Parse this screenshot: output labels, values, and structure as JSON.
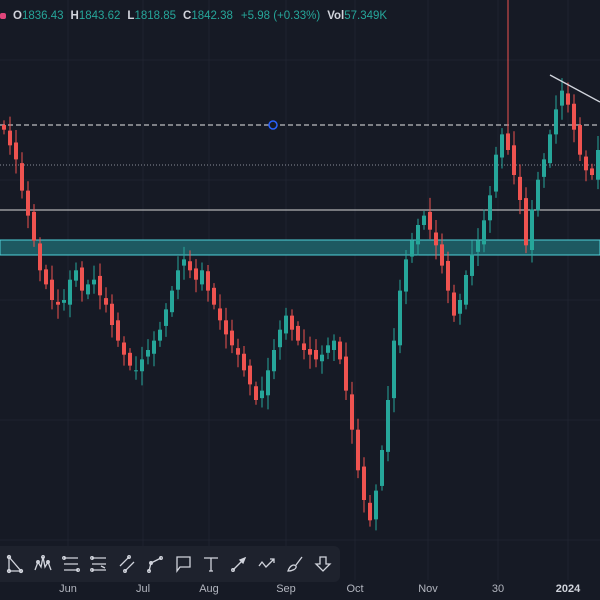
{
  "legend": {
    "open_label": "O",
    "open": "1836.43",
    "high_label": "H",
    "high": "1843.62",
    "low_label": "L",
    "low": "1818.85",
    "close_label": "C",
    "close": "1842.38",
    "change": "+5.98 (+0.33%)",
    "vol_label": "Vol",
    "volume": "57.349K"
  },
  "colors": {
    "up": "#26a69a",
    "down": "#ef5350",
    "background": "#161a25",
    "zone": "#1d5961"
  },
  "toolbar": {
    "tools": [
      "triangle-pattern-icon",
      "head-shoulders-icon",
      "fib-retracement-icon",
      "fib-extension-icon",
      "parallel-channel-icon",
      "path-icon",
      "callout-icon",
      "text-icon",
      "arrow-icon",
      "forecast-icon",
      "brush-icon",
      "arrow-down-icon"
    ]
  },
  "time_axis": {
    "labels": [
      "Jun",
      "Jul",
      "Aug",
      "Sep",
      "Oct",
      "Nov",
      "30",
      "2024"
    ]
  },
  "chart_data": {
    "type": "candlestick",
    "closes": [
      2063,
      2053,
      2044,
      2024,
      2008,
      1992,
      1973,
      1964,
      1954,
      1951,
      1954,
      1967,
      1973,
      1960,
      1964,
      1967,
      1957,
      1951,
      1938,
      1928,
      1919,
      1912,
      1909,
      1916,
      1922,
      1928,
      1935,
      1948,
      1960,
      1973,
      1980,
      1973,
      1967,
      1973,
      1960,
      1951,
      1941,
      1932,
      1925,
      1919,
      1909,
      1900,
      1890,
      1896,
      1909,
      1922,
      1935,
      1944,
      1935,
      1928,
      1922,
      1919,
      1916,
      1919,
      1925,
      1928,
      1916,
      1896,
      1871,
      1845,
      1826,
      1813,
      1832,
      1858,
      1890,
      1928,
      1960,
      1980,
      1992,
      2002,
      2008,
      1999,
      1989,
      1976,
      1960,
      1944,
      1954,
      1970,
      1983,
      1992,
      2005,
      2021,
      2047,
      2060,
      2050,
      2034,
      2018,
      1989,
      2012,
      2031,
      2044,
      2060,
      2076,
      2088,
      2079,
      2063,
      2047,
      2037,
      2034,
      2050
    ],
    "spike_high": 2146
  }
}
